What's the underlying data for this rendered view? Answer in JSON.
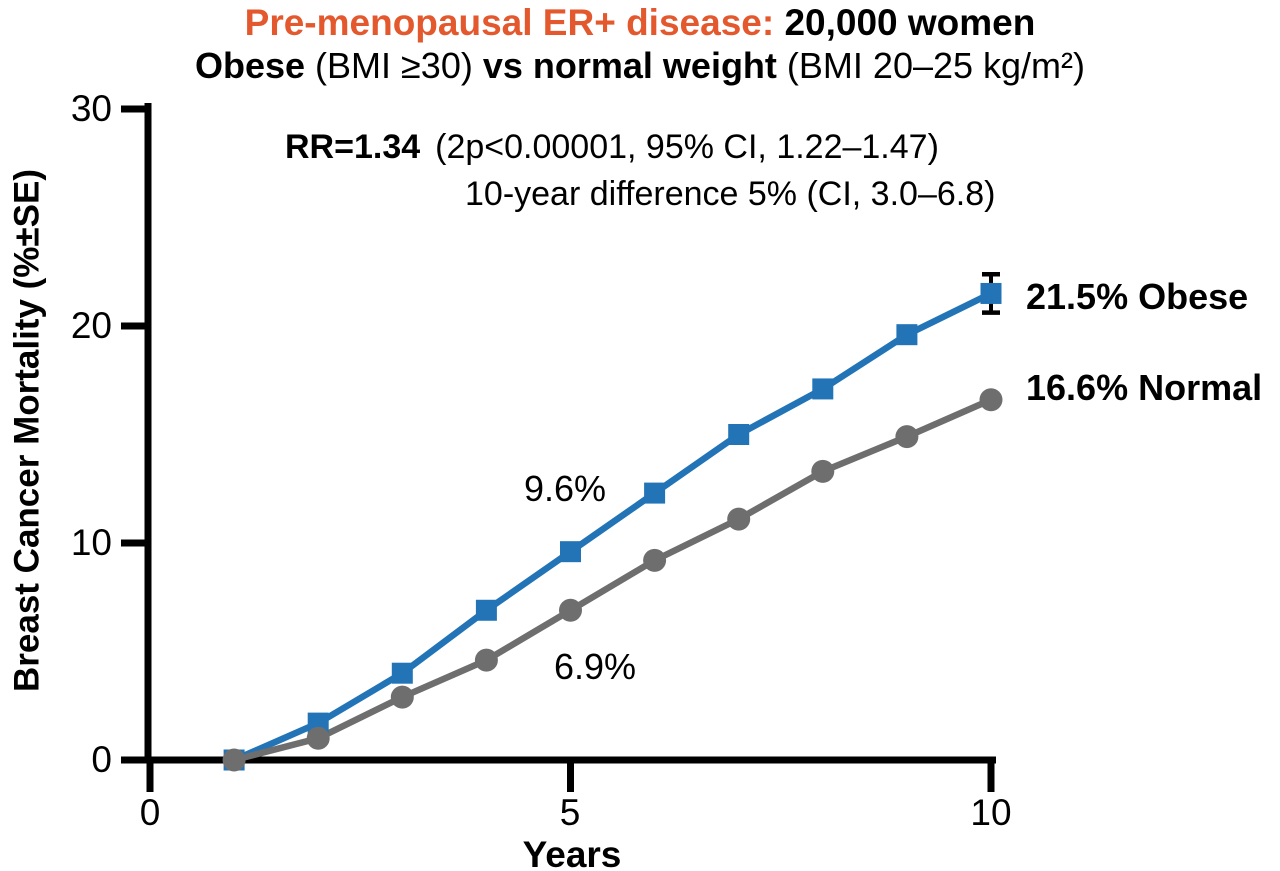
{
  "colors": {
    "accent_orange": "#E4582E",
    "obese_blue": "#2274B7",
    "normal_gray": "#6E6E6E",
    "axis_black": "#000000"
  },
  "chart_data": {
    "type": "line",
    "title_accent": "Pre-menopausal ER+ disease:",
    "title_main": "20,000 women",
    "subtitle_bold1": "Obese",
    "subtitle_reg1": " (BMI ≥30) ",
    "subtitle_bold2": "vs normal weight",
    "subtitle_reg2": " (BMI 20–25 kg/m²)",
    "stats_bold": "RR=1.34",
    "stats_detail": "(2p<0.00001, 95% CI, 1.22–1.47)",
    "stats_line2": "10-year difference 5% (CI, 3.0–6.8)",
    "xlabel": "Years",
    "ylabel": "Breast Cancer Mortality (%±SE)",
    "xlim": [
      0,
      10
    ],
    "ylim": [
      0,
      30
    ],
    "grid": false,
    "legend_position": "end-of-line labels",
    "x_ticks": [
      {
        "v": 0,
        "label": "0"
      },
      {
        "v": 5,
        "label": "5"
      },
      {
        "v": 10,
        "label": "10"
      }
    ],
    "y_ticks": [
      {
        "v": 30,
        "label": "30"
      },
      {
        "v": 20,
        "label": "20"
      },
      {
        "v": 10,
        "label": "10"
      },
      {
        "v": 0,
        "label": "0"
      }
    ],
    "x": [
      1,
      2,
      3,
      4,
      5,
      6,
      7,
      8,
      9,
      10
    ],
    "series": [
      {
        "name": "Obese",
        "color": "#2274B7",
        "marker": "square",
        "values": [
          0,
          1.7,
          4.0,
          6.9,
          9.6,
          12.3,
          15.0,
          17.1,
          19.6,
          21.5
        ],
        "end_label": "21.5% Obese",
        "point_label": "9.6%",
        "point_label_at_year": 5,
        "se_last": 0.7
      },
      {
        "name": "Normal weight",
        "color": "#6E6E6E",
        "marker": "circle",
        "values": [
          0,
          1.0,
          2.9,
          4.6,
          6.9,
          9.2,
          11.1,
          13.3,
          14.9,
          16.6
        ],
        "end_label": "16.6% Normal",
        "point_label": "6.9%",
        "point_label_at_year": 5
      }
    ]
  }
}
